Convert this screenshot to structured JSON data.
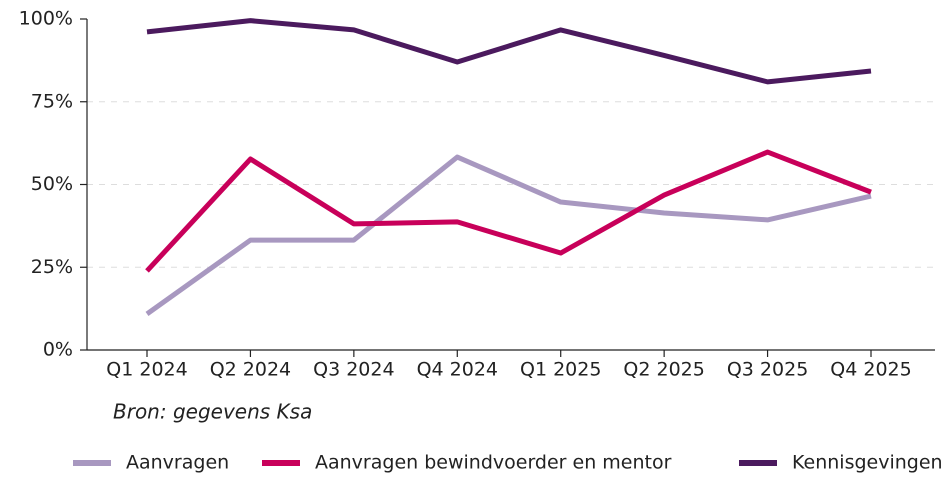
{
  "chart_data": {
    "type": "line",
    "categories": [
      "Q1 2024",
      "Q2 2024",
      "Q3 2024",
      "Q4 2024",
      "Q1 2025",
      "Q2 2025",
      "Q3 2025",
      "Q4 2025"
    ],
    "series": [
      {
        "name": "Aanvragen",
        "color": "#a898c0",
        "values": [
          10.9,
          33.2,
          33.2,
          58.3,
          44.7,
          41.4,
          39.3,
          46.5
        ]
      },
      {
        "name": "Aanvragen bewindvoerder en mentor",
        "color": "#c8005a",
        "values": [
          23.9,
          57.7,
          38.1,
          38.7,
          29.3,
          46.8,
          59.8,
          47.7
        ]
      },
      {
        "name": "Kennisgevingen",
        "color": "#4b1a5e",
        "values": [
          96.1,
          99.5,
          96.7,
          87.0,
          96.7,
          89.0,
          81.0,
          84.3
        ]
      }
    ],
    "ylim": [
      0,
      100
    ],
    "yticks": [
      {
        "value": 0,
        "label": "0%"
      },
      {
        "value": 25,
        "label": "25%"
      },
      {
        "value": 50,
        "label": "50%"
      },
      {
        "value": 75,
        "label": "75%"
      },
      {
        "value": 100,
        "label": "100%"
      }
    ],
    "grid": true,
    "annotation": "Bron: gegevens Ksa",
    "legend": "bottom"
  }
}
